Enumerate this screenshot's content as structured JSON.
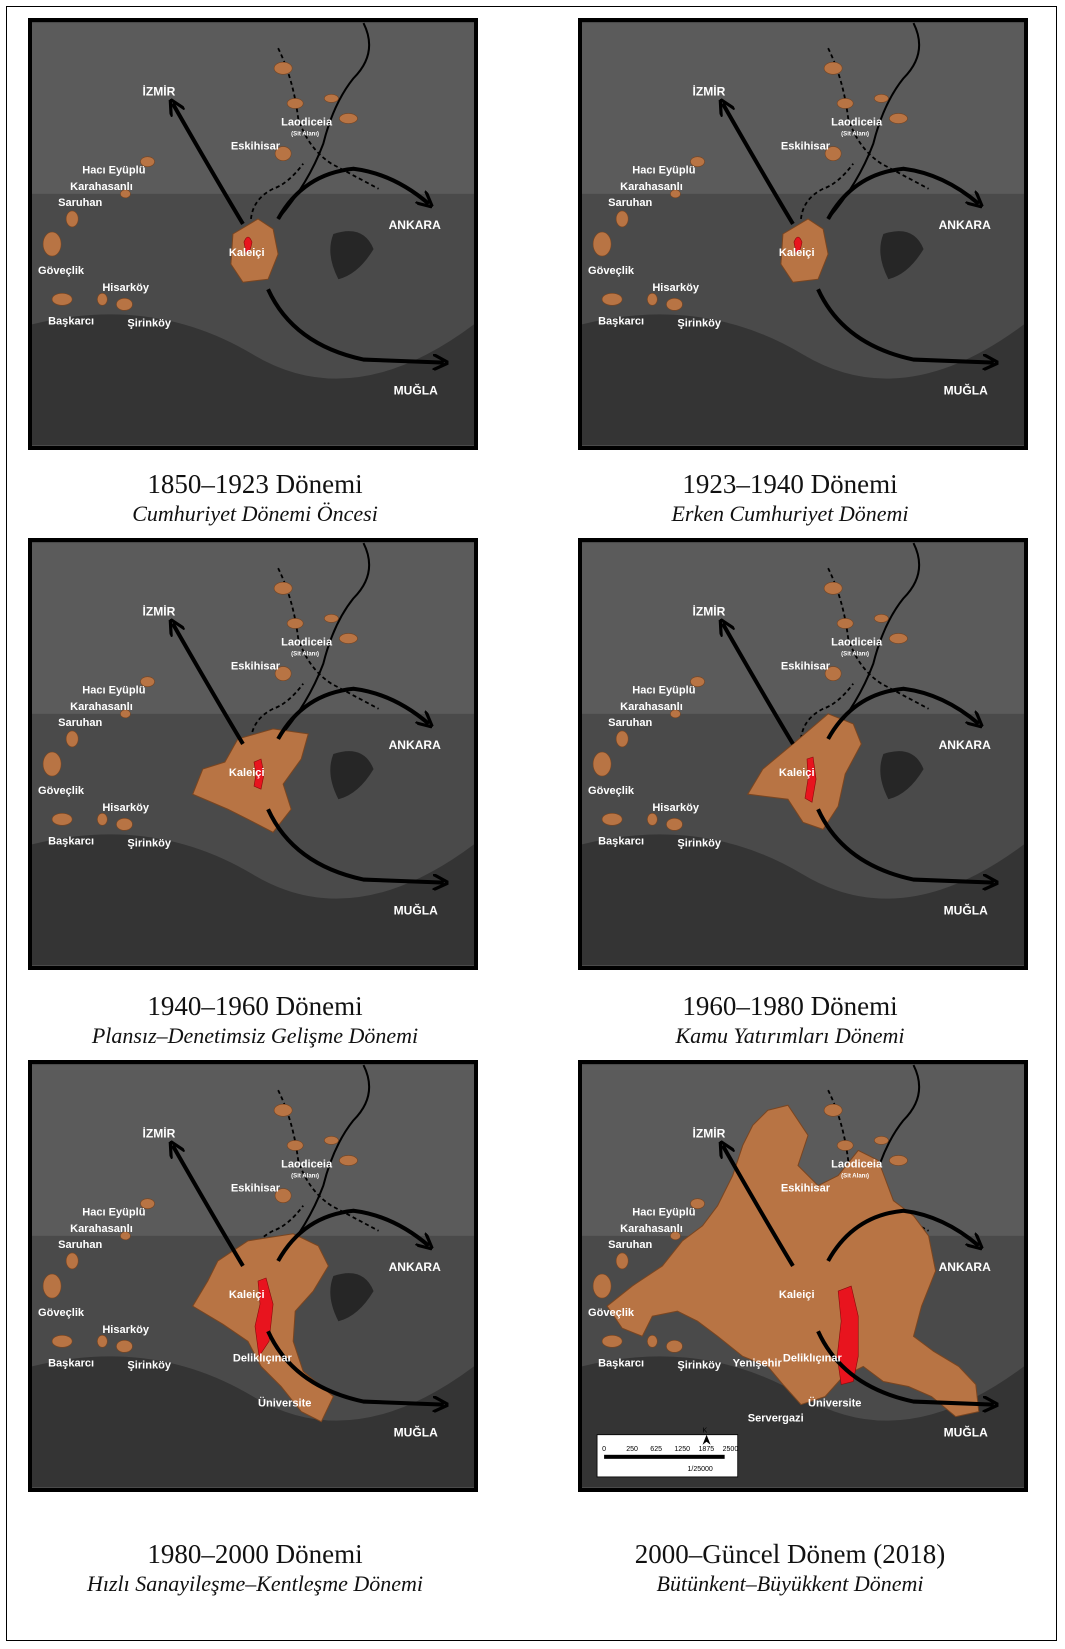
{
  "panels": [
    {
      "period": "1850–1923 Dönemi",
      "subtitle": "Cumhuriyet Dönemi Öncesi",
      "labels": {
        "izmir": "İZMİR",
        "ankara": "ANKARA",
        "mugla": "MUĞLA",
        "laodiceia": "Laodiceia",
        "sit_alani": "(Sit Alanı)",
        "eskihisar": "Eskihisar",
        "haci_eyuplu": "Hacı Eyüplü",
        "karahasanli": "Karahasanlı",
        "saruhan": "Saruhan",
        "goveclik": "Göveçlik",
        "hisarkoy": "Hisarköy",
        "baskarci": "Başkarcı",
        "sirinkoy": "Şirinköy",
        "kaleici": "Kaleiçi"
      }
    },
    {
      "period": "1923–1940  Dönemi",
      "subtitle": "Erken Cumhuriyet Dönemi",
      "labels": {
        "izmir": "İZMİR",
        "ankara": "ANKARA",
        "mugla": "MUĞLA",
        "laodiceia": "Laodiceia",
        "sit_alani": "(Sit Alanı)",
        "eskihisar": "Eskihisar",
        "haci_eyuplu": "Hacı Eyüplü",
        "karahasanli": "Karahasanlı",
        "saruhan": "Saruhan",
        "goveclik": "Göveçlik",
        "hisarkoy": "Hisarköy",
        "baskarci": "Başkarcı",
        "sirinkoy": "Şirinköy",
        "kaleici": "Kaleiçi"
      }
    },
    {
      "period": "1940–1960  Dönemi",
      "subtitle": "Plansız–Denetimsiz Gelişme Dönemi",
      "labels": {
        "izmir": "İZMİR",
        "ankara": "ANKARA",
        "mugla": "MUĞLA",
        "laodiceia": "Laodiceia",
        "sit_alani": "(Sit Alanı)",
        "eskihisar": "Eskihisar",
        "haci_eyuplu": "Hacı Eyüplü",
        "karahasanli": "Karahasanlı",
        "saruhan": "Saruhan",
        "goveclik": "Göveçlik",
        "hisarkoy": "Hisarköy",
        "baskarci": "Başkarcı",
        "sirinkoy": "Şirinköy",
        "kaleici": "Kaleiçi"
      }
    },
    {
      "period": "1960–1980 Dönemi",
      "subtitle": "Kamu Yatırımları Dönemi",
      "labels": {
        "izmir": "İZMİR",
        "ankara": "ANKARA",
        "mugla": "MUĞLA",
        "laodiceia": "Laodiceia",
        "sit_alani": "(Sit Alanı)",
        "eskihisar": "Eskihisar",
        "haci_eyuplu": "Hacı Eyüplü",
        "karahasanli": "Karahasanlı",
        "saruhan": "Saruhan",
        "goveclik": "Göveçlik",
        "hisarkoy": "Hisarköy",
        "baskarci": "Başkarcı",
        "sirinkoy": "Şirinköy",
        "kaleici": "Kaleiçi"
      }
    },
    {
      "period": "1980–2000 Dönemi",
      "subtitle": "Hızlı Sanayileşme–Kentleşme Dönemi",
      "labels": {
        "izmir": "İZMİR",
        "ankara": "ANKARA",
        "mugla": "MUĞLA",
        "laodiceia": "Laodiceia",
        "sit_alani": "(Sit Alanı)",
        "eskihisar": "Eskihisar",
        "haci_eyuplu": "Hacı Eyüplü",
        "karahasanli": "Karahasanlı",
        "saruhan": "Saruhan",
        "goveclik": "Göveçlik",
        "hisarkoy": "Hisarköy",
        "baskarci": "Başkarcı",
        "sirinkoy": "Şirinköy",
        "kaleici": "Kaleiçi",
        "deliklicinar": "Deliklıçınar",
        "universite": "Üniversite"
      }
    },
    {
      "period": "2000–Güncel Dönem (2018)",
      "subtitle": "Bütünkent–Büyükkent Dönemi",
      "labels": {
        "izmir": "İZMİR",
        "ankara": "ANKARA",
        "mugla": "MUĞLA",
        "laodiceia": "Laodiceia",
        "sit_alani": "(Sit Alanı)",
        "eskihisar": "Eskihisar",
        "haci_eyuplu": "Hacı Eyüplü",
        "karahasanli": "Karahasanlı",
        "saruhan": "Saruhan",
        "goveclik": "Göveçlik",
        "baskarci": "Başkarcı",
        "sirinkoy": "Şirinköy",
        "kaleici": "Kaleiçi",
        "deliklicinar": "Deliklıçınar",
        "universite": "Üniversite",
        "yenisehir": "Yenişehir",
        "servergazi": "Servergazi"
      },
      "scale": {
        "ticks": [
          "0",
          "250",
          "625",
          "1250",
          "1875",
          "2500"
        ],
        "ratio": "1/25000",
        "north": "K"
      }
    }
  ],
  "colors": {
    "urban_area": "#b87444",
    "historic_core": "#e8141e",
    "arrow": "#000000",
    "satellite": "#4a4a4a"
  }
}
